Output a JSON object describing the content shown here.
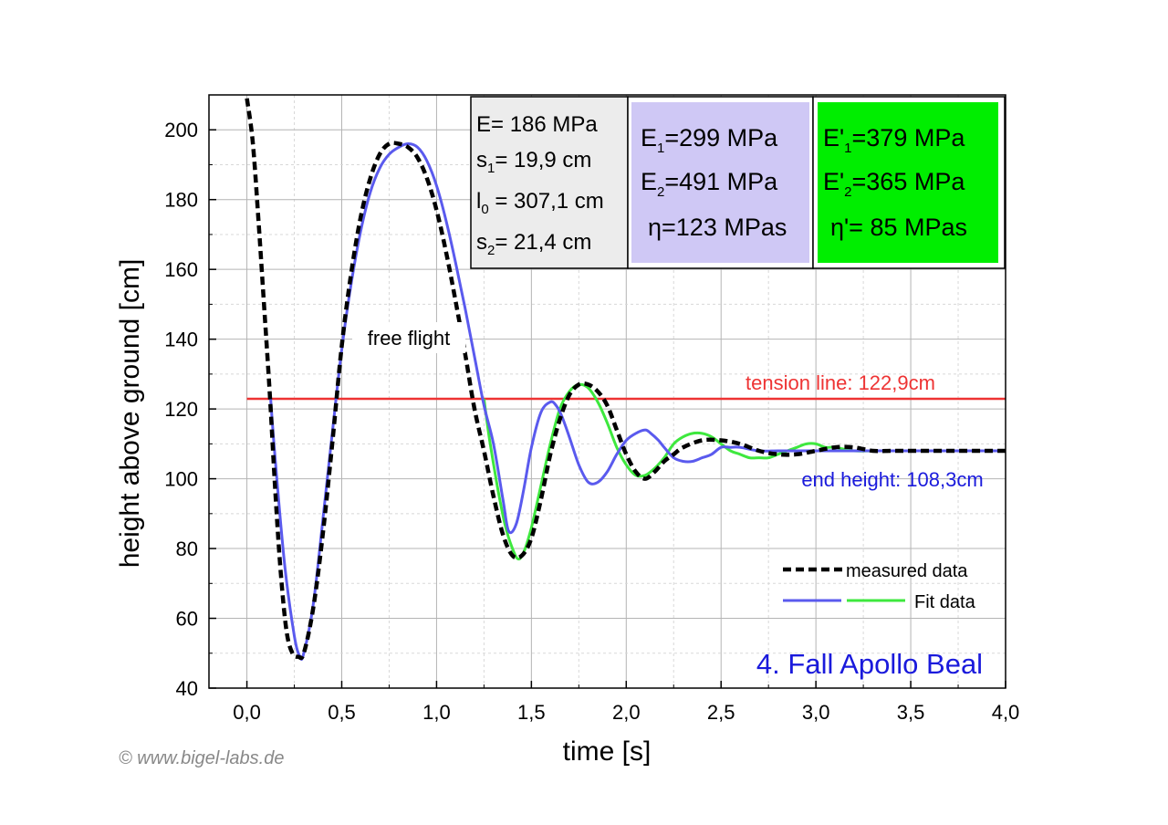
{
  "chart_data": {
    "type": "line",
    "title": "4. Fall Apollo Beal",
    "xlabel": "time [s]",
    "ylabel": "height above ground [cm]",
    "xlim": [
      -0.2,
      4.0
    ],
    "ylim": [
      40,
      210
    ],
    "x_ticks": [
      "0,0",
      "0,5",
      "1,0",
      "1,5",
      "2,0",
      "2,5",
      "3,0",
      "3,5",
      "4,0"
    ],
    "y_ticks": [
      "40",
      "60",
      "80",
      "100",
      "120",
      "140",
      "160",
      "180",
      "200"
    ],
    "grid": true,
    "legend_position": "bottom-right",
    "legend": {
      "measured": "measured data",
      "fit": "Fit data"
    },
    "annotations": {
      "free_flight": "free flight",
      "tension": "tension line: 122,9cm",
      "end": "end height: 108,3cm"
    },
    "reference_lines": {
      "tension_y": 122.9,
      "end_y": 108.3
    },
    "params_box": {
      "E": "E= 186 MPa",
      "s1_base": "s",
      "s1_sub": "1",
      "s1_rest": "=   19,9 cm",
      "l0_base": "l",
      "l0_sub": "0",
      "l0_rest": " = 307,1 cm",
      "s2_base": "s",
      "s2_sub": "2",
      "s2_rest": "=   21,4 cm"
    },
    "fit_box_1": {
      "e1_base": "E",
      "e1_sub": "1",
      "e1_rest": "=299 MPa",
      "e2_base": "E",
      "e2_sub": "2",
      "e2_rest": "=491 MPa",
      "eta": "η=123 MPas"
    },
    "fit_box_2": {
      "e1_base": "E'",
      "e1_sub": "1",
      "e1_rest": "=379 MPa",
      "e2_base": "E'",
      "e2_sub": "2",
      "e2_rest": "=365 MPa",
      "eta": "η'=  85 MPas"
    },
    "copyright": "© www.bigel-labs.de",
    "colors": {
      "measured": "#000000",
      "fit_blue": "#5a5aee",
      "fit_green": "#3ee83e",
      "tension": "#ee3333",
      "end_text": "#1a1adc",
      "title_text": "#1a1adc",
      "box_params": "#ececec",
      "box_fit1": "#cfc8f5",
      "box_fit2": "#00ee00"
    },
    "series": [
      {
        "name": "measured data",
        "x": [
          0.0,
          0.03,
          0.06,
          0.09,
          0.12,
          0.15,
          0.18,
          0.21,
          0.24,
          0.27,
          0.3,
          0.35,
          0.4,
          0.45,
          0.5,
          0.55,
          0.6,
          0.65,
          0.7,
          0.75,
          0.8,
          0.85,
          0.9,
          0.95,
          1.0,
          1.05,
          1.1,
          1.15,
          1.2,
          1.25,
          1.3,
          1.35,
          1.4,
          1.45,
          1.5,
          1.55,
          1.6,
          1.65,
          1.7,
          1.75,
          1.8,
          1.85,
          1.9,
          1.95,
          2.0,
          2.05,
          2.1,
          2.15,
          2.2,
          2.25,
          2.3,
          2.4,
          2.5,
          2.6,
          2.7,
          2.8,
          2.9,
          3.0,
          3.1,
          3.2,
          3.3,
          3.4,
          3.5,
          3.6,
          3.7,
          3.8,
          3.9,
          4.0
        ],
        "y": [
          209,
          197,
          175,
          150,
          125,
          96,
          72,
          56,
          50,
          49,
          50,
          63,
          84,
          110,
          138,
          159,
          175,
          186,
          193,
          196,
          196,
          195,
          192,
          186,
          177,
          165,
          151,
          136,
          120,
          108,
          95,
          84,
          78,
          78,
          83,
          94,
          107,
          117,
          124,
          127,
          127,
          125,
          121,
          114,
          107,
          102,
          100,
          102,
          105,
          107,
          109,
          111,
          111,
          110,
          108,
          107,
          107,
          108,
          109,
          109,
          108,
          108,
          108,
          108,
          108,
          108,
          108,
          108
        ]
      },
      {
        "name": "Fit data (blue)",
        "x": [
          0.125,
          0.15,
          0.2,
          0.25,
          0.28,
          0.3,
          0.35,
          0.4,
          0.45,
          0.5,
          0.55,
          0.6,
          0.65,
          0.7,
          0.75,
          0.8,
          0.85,
          0.9,
          0.95,
          1.0,
          1.05,
          1.1,
          1.15,
          1.2,
          1.25,
          1.3,
          1.35,
          1.38,
          1.42,
          1.46,
          1.5,
          1.55,
          1.6,
          1.63,
          1.66,
          1.7,
          1.75,
          1.8,
          1.85,
          1.9,
          1.95,
          2.0,
          2.05,
          2.1,
          2.13,
          2.17,
          2.2,
          2.25,
          2.3,
          2.35,
          2.4,
          2.45,
          2.5,
          2.55,
          2.6,
          2.7,
          2.8,
          2.9,
          3.0,
          3.2,
          3.4,
          3.6,
          3.8,
          4.0
        ],
        "y": [
          122.9,
          105,
          75,
          55,
          49,
          50,
          64,
          88,
          113,
          137,
          156,
          171,
          182,
          189,
          193,
          195,
          196,
          195,
          191,
          184,
          174,
          162,
          149,
          135,
          121,
          110,
          94,
          85,
          87,
          97,
          109,
          119,
          122,
          121,
          118,
          112,
          104,
          99,
          99,
          102,
          107,
          111,
          113,
          114,
          113,
          111,
          109,
          106,
          105,
          105,
          106,
          107,
          109,
          109,
          109,
          108,
          108,
          108,
          108,
          108,
          108,
          108,
          108,
          108
        ]
      },
      {
        "name": "Fit data (green)",
        "x": [
          1.25,
          1.28,
          1.32,
          1.36,
          1.4,
          1.43,
          1.46,
          1.5,
          1.55,
          1.6,
          1.65,
          1.7,
          1.75,
          1.8,
          1.85,
          1.9,
          1.95,
          2.0,
          2.05,
          2.1,
          2.15,
          2.2,
          2.25,
          2.3,
          2.35,
          2.4,
          2.45,
          2.5,
          2.55,
          2.6,
          2.65,
          2.7,
          2.75,
          2.8,
          2.85,
          2.9,
          2.95,
          3.0,
          3.05,
          3.1,
          3.2,
          3.3,
          3.4,
          3.6,
          3.8,
          4.0
        ],
        "y": [
          122.9,
          111,
          98,
          87,
          80,
          77,
          79,
          86,
          98,
          110,
          120,
          125,
          127,
          126,
          122,
          116,
          109,
          104,
          101,
          101,
          103,
          106,
          110,
          112,
          113,
          113,
          112,
          110,
          108,
          107,
          106,
          106,
          106,
          107,
          108,
          109,
          110,
          110,
          109,
          109,
          108,
          108,
          108,
          108,
          108,
          108
        ]
      }
    ]
  }
}
